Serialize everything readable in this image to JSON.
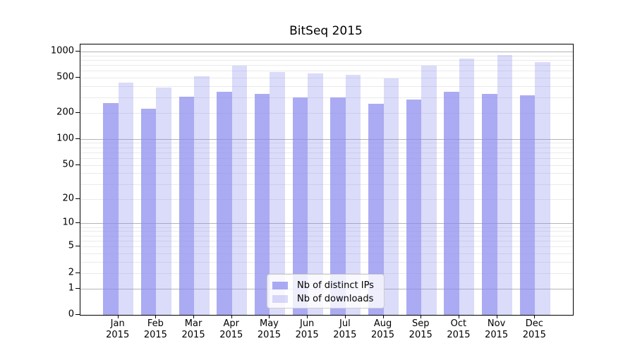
{
  "chart_data": {
    "type": "bar",
    "title": "BitSeq 2015",
    "categories": [
      "Jan",
      "Feb",
      "Mar",
      "Apr",
      "May",
      "Jun",
      "Jul",
      "Aug",
      "Sep",
      "Oct",
      "Nov",
      "Dec"
    ],
    "x_year_label": "2015",
    "series": [
      {
        "name": "Nb of distinct IPs",
        "color": "#8888EE",
        "alpha": 0.7,
        "values": [
          257,
          223,
          303,
          345,
          327,
          298,
          301,
          253,
          283,
          349,
          329,
          315
        ]
      },
      {
        "name": "Nb of downloads",
        "color": "#8888EE",
        "alpha": 0.3,
        "values": [
          440,
          390,
          520,
          690,
          585,
          565,
          543,
          495,
          690,
          830,
          905,
          760
        ]
      }
    ],
    "y_axis": {
      "scale": "log10(value+1)",
      "ylim": [
        0,
        1200
      ],
      "tick_labels": [
        1000,
        500,
        200,
        100,
        50,
        20,
        10,
        5,
        2,
        1,
        0
      ],
      "major_gridlines": [
        1,
        10,
        100,
        1000
      ],
      "minor_gridlines": [
        2,
        3,
        4,
        5,
        6,
        7,
        8,
        9,
        20,
        30,
        40,
        50,
        60,
        70,
        80,
        90,
        200,
        300,
        400,
        500,
        600,
        700,
        800,
        900
      ]
    },
    "legend": {
      "position": "lower-center"
    },
    "grid": true,
    "colors": {
      "major_grid": "#b4b4b4",
      "minor_grid": "#eaeaea",
      "axis": "#000000",
      "background": "#ffffff",
      "text": "#000000"
    }
  }
}
